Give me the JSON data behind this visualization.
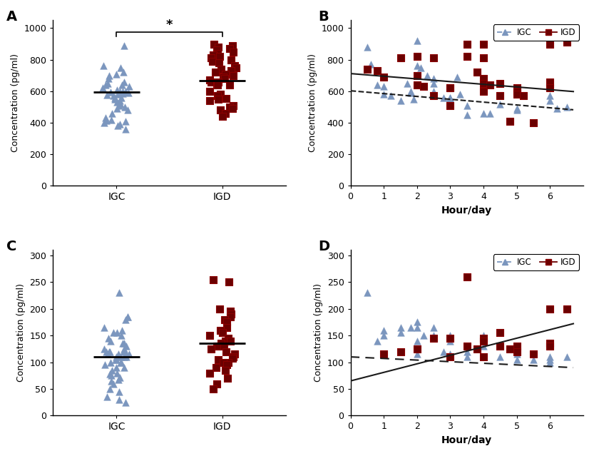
{
  "panel_A": {
    "label": "A",
    "igc_data": [
      890,
      760,
      750,
      720,
      710,
      700,
      680,
      660,
      650,
      640,
      640,
      630,
      620,
      610,
      600,
      600,
      600,
      595,
      590,
      585,
      580,
      575,
      570,
      560,
      560,
      550,
      540,
      530,
      520,
      510,
      500,
      490,
      480,
      460,
      430,
      420,
      415,
      410,
      400,
      390,
      380,
      360
    ],
    "igd_data": [
      900,
      890,
      880,
      870,
      860,
      850,
      840,
      830,
      820,
      810,
      800,
      790,
      780,
      760,
      750,
      740,
      730,
      720,
      710,
      700,
      690,
      680,
      670,
      660,
      660,
      650,
      640,
      640,
      600,
      580,
      570,
      555,
      550,
      540,
      510,
      500,
      490,
      480,
      460,
      440
    ],
    "igc_mean": 597,
    "igd_mean": 668,
    "ylabel": "Concentration (pg/ml)",
    "yticks": [
      0,
      200,
      400,
      600,
      800,
      1000
    ],
    "ylim": [
      0,
      1050
    ],
    "significance": "*"
  },
  "panel_B": {
    "label": "B",
    "igc_x": [
      0.5,
      0.6,
      0.8,
      1.0,
      1.0,
      1.2,
      1.5,
      1.7,
      1.8,
      1.8,
      1.9,
      2.0,
      2.0,
      2.1,
      2.3,
      2.5,
      2.5,
      2.5,
      2.8,
      3.0,
      3.0,
      3.0,
      3.2,
      3.3,
      3.5,
      3.5,
      4.0,
      4.0,
      4.2,
      4.5,
      5.0,
      5.0,
      6.0,
      6.0,
      6.2,
      6.5
    ],
    "igc_y": [
      880,
      770,
      640,
      630,
      580,
      570,
      540,
      650,
      600,
      590,
      550,
      920,
      760,
      750,
      700,
      680,
      650,
      600,
      560,
      560,
      560,
      550,
      690,
      580,
      510,
      450,
      680,
      460,
      460,
      520,
      490,
      480,
      570,
      540,
      490,
      500
    ],
    "igd_x": [
      0.5,
      0.8,
      1.0,
      1.5,
      2.0,
      2.0,
      2.0,
      2.2,
      2.5,
      2.5,
      3.0,
      3.0,
      3.0,
      3.5,
      3.5,
      3.8,
      4.0,
      4.0,
      4.0,
      4.0,
      4.0,
      4.2,
      4.5,
      4.5,
      4.8,
      5.0,
      5.0,
      5.0,
      5.2,
      5.5,
      6.0,
      6.0,
      6.0,
      6.5
    ],
    "igd_y": [
      740,
      730,
      690,
      810,
      820,
      700,
      640,
      630,
      810,
      570,
      620,
      620,
      510,
      900,
      820,
      720,
      900,
      810,
      680,
      650,
      600,
      640,
      650,
      570,
      410,
      620,
      600,
      580,
      570,
      400,
      900,
      660,
      620,
      910
    ],
    "igc_slope": -18,
    "igc_intercept": 603,
    "igd_slope": -17,
    "igd_intercept": 712,
    "ylabel": "Concentration (pg/ml)",
    "xlabel": "Hour/day",
    "yticks": [
      0,
      200,
      400,
      600,
      800,
      1000
    ],
    "ylim": [
      0,
      1050
    ],
    "xlim": [
      0,
      7
    ]
  },
  "panel_C": {
    "label": "C",
    "igc_data": [
      230,
      185,
      185,
      180,
      165,
      160,
      155,
      155,
      150,
      145,
      140,
      135,
      135,
      130,
      125,
      125,
      120,
      120,
      120,
      120,
      115,
      115,
      115,
      115,
      110,
      110,
      110,
      110,
      105,
      105,
      100,
      100,
      100,
      95,
      90,
      90,
      85,
      80,
      78,
      75,
      72,
      68,
      65,
      60,
      50,
      45,
      35,
      30,
      25
    ],
    "igd_data": [
      255,
      250,
      200,
      195,
      190,
      185,
      180,
      175,
      165,
      160,
      155,
      155,
      150,
      145,
      140,
      140,
      135,
      130,
      130,
      130,
      125,
      120,
      115,
      110,
      108,
      105,
      100,
      100,
      95,
      90,
      85,
      80,
      70,
      60,
      50
    ],
    "igc_mean": 110,
    "igd_mean": 135,
    "ylabel": "Concentration (pg/ml)",
    "yticks": [
      0,
      50,
      100,
      150,
      200,
      250,
      300
    ],
    "ylim": [
      0,
      310
    ]
  },
  "panel_D": {
    "label": "D",
    "igc_x": [
      0.5,
      0.8,
      1.0,
      1.0,
      1.5,
      1.5,
      1.8,
      2.0,
      2.0,
      2.0,
      2.0,
      2.2,
      2.5,
      2.5,
      2.5,
      2.8,
      3.0,
      3.0,
      3.0,
      3.5,
      3.5,
      4.0,
      4.0,
      4.0,
      4.5,
      5.0,
      5.0,
      5.5,
      6.0,
      6.0,
      6.0,
      6.5
    ],
    "igc_y": [
      230,
      140,
      160,
      150,
      165,
      155,
      165,
      175,
      165,
      140,
      115,
      150,
      165,
      150,
      145,
      120,
      150,
      140,
      115,
      120,
      110,
      150,
      130,
      110,
      110,
      115,
      105,
      105,
      110,
      105,
      100,
      110
    ],
    "igd_x": [
      1.0,
      1.5,
      2.0,
      2.5,
      3.0,
      3.0,
      3.5,
      3.5,
      3.8,
      4.0,
      4.0,
      4.0,
      4.5,
      4.5,
      4.8,
      5.0,
      5.0,
      5.5,
      6.0,
      6.0,
      6.0,
      6.5
    ],
    "igd_y": [
      115,
      120,
      125,
      145,
      145,
      110,
      260,
      130,
      125,
      145,
      140,
      110,
      155,
      130,
      125,
      130,
      120,
      115,
      200,
      135,
      130,
      200
    ],
    "igc_slope": -3,
    "igc_intercept": 110,
    "igd_slope": 16,
    "igd_intercept": 65,
    "ylabel": "Concentration (pg/ml)",
    "xlabel": "Hour/day",
    "yticks": [
      0,
      50,
      100,
      150,
      200,
      250,
      300
    ],
    "ylim": [
      0,
      310
    ],
    "xlim": [
      0,
      7
    ]
  },
  "igc_color": "#7B96BE",
  "igd_color": "#6B0000",
  "igd_edge_color": "#8B0000",
  "igc_marker": "^",
  "igd_marker": "s",
  "marker_size": 7,
  "line_color": "#1a1a1a"
}
